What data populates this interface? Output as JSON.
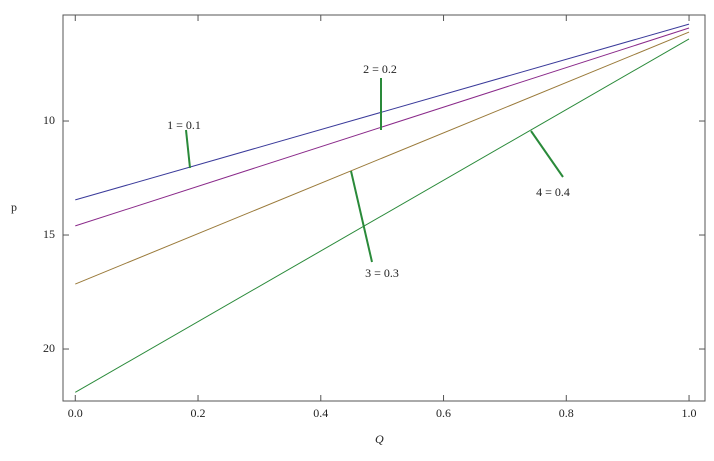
{
  "chart_data": {
    "type": "line",
    "x_label": "Q⃗",
    "y_label": "p",
    "x": [
      0,
      1
    ],
    "series": [
      {
        "name": "1 = 0.1",
        "color": "#3a3a9a",
        "values": [
          13.46,
          5.75
        ]
      },
      {
        "name": "2 = 0.2",
        "color": "#8a2a8a",
        "values": [
          14.6,
          5.92
        ]
      },
      {
        "name": "3 = 0.3",
        "color": "#9a7a3a",
        "values": [
          17.15,
          6.1
        ]
      },
      {
        "name": "4 = 0.4",
        "color": "#2a8a3a",
        "values": [
          21.9,
          6.4
        ]
      }
    ],
    "xlim": [
      -0.02,
      1.026
    ],
    "ylim": [
      22.28,
      5.35
    ],
    "xticks": [
      {
        "value": 0,
        "label": "0.0"
      },
      {
        "value": 0.2,
        "label": "0.2"
      },
      {
        "value": 0.4,
        "label": "0.4"
      },
      {
        "value": 0.6,
        "label": "0.6"
      },
      {
        "value": 0.8,
        "label": "0.8"
      },
      {
        "value": 1,
        "label": "1.0"
      }
    ],
    "yticks": [
      10,
      15,
      20
    ]
  }
}
